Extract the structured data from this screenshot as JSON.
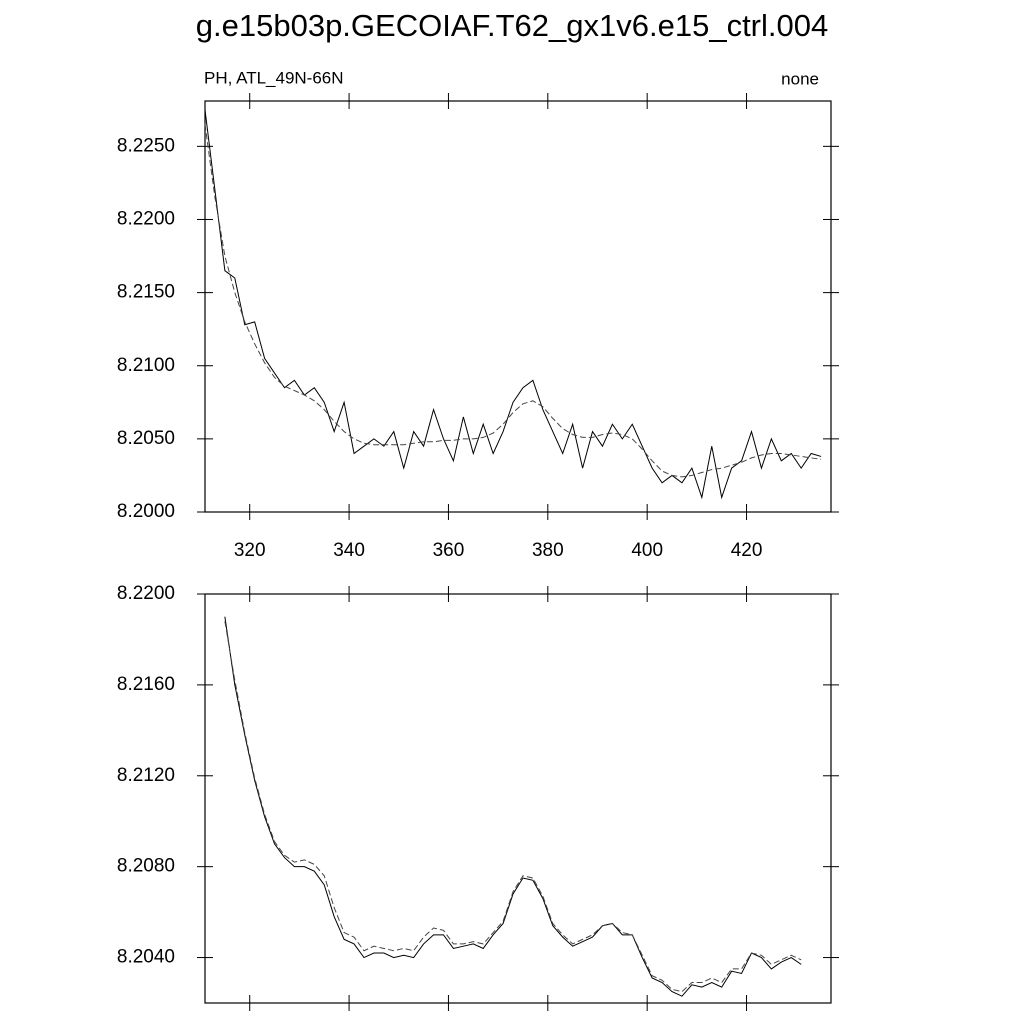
{
  "title": "g.e15b03p.GECOIAF.T62_gx1v6.e15_ctrl.004",
  "chart_data": [
    {
      "type": "line",
      "subtitle_left": "PH, ATL_49N-66N",
      "subtitle_right": "none",
      "xlim": [
        311,
        437
      ],
      "xticks": [
        320,
        340,
        360,
        380,
        400,
        420
      ],
      "ylim": [
        8.2,
        8.2281
      ],
      "yticks": [
        {
          "value": 8.2,
          "label": "8.2000"
        },
        {
          "value": 8.205,
          "label": "8.2050"
        },
        {
          "value": 8.21,
          "label": "8.2100"
        },
        {
          "value": 8.215,
          "label": "8.2150"
        },
        {
          "value": 8.22,
          "label": "8.2200"
        },
        {
          "value": 8.225,
          "label": "8.2250"
        }
      ],
      "x": [
        311,
        313,
        315,
        317,
        319,
        321,
        323,
        325,
        327,
        329,
        331,
        333,
        335,
        337,
        339,
        341,
        343,
        345,
        347,
        349,
        351,
        353,
        355,
        357,
        359,
        361,
        363,
        365,
        367,
        369,
        371,
        373,
        375,
        377,
        379,
        381,
        383,
        385,
        387,
        389,
        391,
        393,
        395,
        397,
        399,
        401,
        403,
        405,
        407,
        409,
        411,
        413,
        415,
        417,
        419,
        421,
        423,
        425,
        427,
        429,
        431,
        433,
        435
      ],
      "series": [
        {
          "color": "#000000",
          "dash": false,
          "values": [
            8.2275,
            8.222,
            8.2165,
            8.216,
            8.2128,
            8.213,
            8.2105,
            8.2095,
            8.2085,
            8.209,
            8.208,
            8.2085,
            8.2075,
            8.2055,
            8.2075,
            8.204,
            8.2045,
            8.205,
            8.2045,
            8.2055,
            8.203,
            8.2055,
            8.2045,
            8.207,
            8.205,
            8.2035,
            8.2065,
            8.204,
            8.206,
            8.204,
            8.2055,
            8.2075,
            8.2085,
            8.209,
            8.207,
            8.2055,
            8.204,
            8.206,
            8.203,
            8.2055,
            8.2045,
            8.206,
            8.205,
            8.206,
            8.2045,
            8.203,
            8.202,
            8.2025,
            8.202,
            8.203,
            8.201,
            8.2045,
            8.201,
            8.203,
            8.2035,
            8.2055,
            8.203,
            8.205,
            8.2035,
            8.204,
            8.203,
            8.204,
            8.2038
          ]
        },
        {
          "color": "#444444",
          "dash": true,
          "values": [
            8.2265,
            8.2215,
            8.2175,
            8.215,
            8.213,
            8.2115,
            8.2102,
            8.2092,
            8.2086,
            8.2083,
            8.208,
            8.2076,
            8.207,
            8.2062,
            8.2055,
            8.205,
            8.2047,
            8.2046,
            8.2046,
            8.2046,
            8.2046,
            8.2047,
            8.2048,
            8.2048,
            8.2049,
            8.2049,
            8.205,
            8.205,
            8.2051,
            8.2054,
            8.206,
            8.2068,
            8.2074,
            8.2076,
            8.2072,
            8.2064,
            8.2057,
            8.2053,
            8.2051,
            8.2051,
            8.2053,
            8.2054,
            8.2053,
            8.205,
            8.2043,
            8.2035,
            8.2028,
            8.2025,
            8.2024,
            8.2025,
            8.2027,
            8.2029,
            8.203,
            8.2032,
            8.2034,
            8.2037,
            8.2039,
            8.204,
            8.204,
            8.2039,
            8.2038,
            8.2037,
            8.2036
          ]
        }
      ]
    },
    {
      "type": "line",
      "xlim": [
        311,
        437
      ],
      "xticks": [
        320,
        340,
        360,
        380,
        400,
        420
      ],
      "ylim": [
        8.202,
        8.22
      ],
      "yticks": [
        {
          "value": 8.204,
          "label": "8.2040"
        },
        {
          "value": 8.208,
          "label": "8.2080"
        },
        {
          "value": 8.212,
          "label": "8.2120"
        },
        {
          "value": 8.216,
          "label": "8.2160"
        },
        {
          "value": 8.22,
          "label": "8.2200"
        }
      ],
      "x": [
        315,
        317,
        319,
        321,
        323,
        325,
        327,
        329,
        331,
        333,
        335,
        337,
        339,
        341,
        343,
        345,
        347,
        349,
        351,
        353,
        355,
        357,
        359,
        361,
        363,
        365,
        367,
        369,
        371,
        373,
        375,
        377,
        379,
        381,
        383,
        385,
        387,
        389,
        391,
        393,
        395,
        397,
        399,
        401,
        403,
        405,
        407,
        409,
        411,
        413,
        415,
        417,
        419,
        421,
        423,
        425,
        427,
        429,
        431
      ],
      "series": [
        {
          "color": "#000000",
          "dash": false,
          "values": [
            8.219,
            8.216,
            8.2138,
            8.2118,
            8.2102,
            8.209,
            8.2084,
            8.208,
            8.208,
            8.2078,
            8.2072,
            8.2058,
            8.2048,
            8.2046,
            8.204,
            8.2042,
            8.2042,
            8.204,
            8.2041,
            8.204,
            8.2046,
            8.205,
            8.205,
            8.2044,
            8.2045,
            8.2046,
            8.2044,
            8.205,
            8.2055,
            8.2068,
            8.2075,
            8.2074,
            8.2066,
            8.2054,
            8.2049,
            8.2045,
            8.2047,
            8.2049,
            8.2054,
            8.2055,
            8.205,
            8.205,
            8.204,
            8.2031,
            8.2029,
            8.2025,
            8.2023,
            8.2028,
            8.2027,
            8.2029,
            8.2027,
            8.2034,
            8.2033,
            8.2042,
            8.204,
            8.2035,
            8.2038,
            8.204,
            8.2037
          ]
        },
        {
          "color": "#444444",
          "dash": true,
          "values": [
            8.2188,
            8.2162,
            8.2139,
            8.2119,
            8.2103,
            8.2091,
            8.2085,
            8.2082,
            8.2083,
            8.2081,
            8.2076,
            8.2062,
            8.2051,
            8.2049,
            8.2043,
            8.2045,
            8.2044,
            8.2043,
            8.2044,
            8.2043,
            8.2049,
            8.2053,
            8.2052,
            8.2046,
            8.2046,
            8.2047,
            8.2046,
            8.2051,
            8.2056,
            8.2069,
            8.2076,
            8.2075,
            8.2067,
            8.2055,
            8.205,
            8.2046,
            8.2048,
            8.205,
            8.2054,
            8.2055,
            8.2051,
            8.205,
            8.2041,
            8.2032,
            8.203,
            8.2026,
            8.2025,
            8.2029,
            8.2029,
            8.2031,
            8.2029,
            8.2035,
            8.2035,
            8.2042,
            8.2041,
            8.2037,
            8.2039,
            8.2041,
            8.2039
          ]
        }
      ]
    }
  ]
}
